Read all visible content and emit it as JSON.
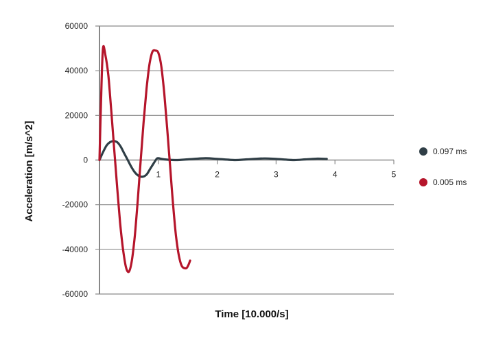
{
  "chart_data": {
    "type": "line",
    "title": "",
    "xlabel": "Time [10.000/s]",
    "ylabel": "Acceleration [m/s^2]",
    "xlim": [
      0,
      5
    ],
    "ylim": [
      -60000,
      60000
    ],
    "x_ticks": [
      "1",
      "2",
      "3",
      "4",
      "5"
    ],
    "y_ticks": [
      "60000",
      "40000",
      "20000",
      "0",
      "-20000",
      "-40000",
      "-60000"
    ],
    "grid": "horizontal",
    "legend_position": "right",
    "series": [
      {
        "name": "0.097 ms",
        "color": "#2f3e46",
        "x": [
          0,
          0.06,
          0.12,
          0.18,
          0.24,
          0.3,
          0.36,
          0.42,
          0.48,
          0.54,
          0.6,
          0.66,
          0.73,
          0.8,
          0.86,
          0.92,
          0.97,
          1.0,
          1.1,
          1.3,
          1.5,
          1.8,
          2.0,
          2.3,
          2.5,
          2.8,
          3.0,
          3.3,
          3.5,
          3.7,
          3.86
        ],
        "y": [
          0,
          3500,
          6500,
          8000,
          8500,
          8000,
          6000,
          3000,
          0,
          -3000,
          -5500,
          -7000,
          -7500,
          -6500,
          -4000,
          -1500,
          500,
          800,
          300,
          0,
          300,
          800,
          500,
          0,
          300,
          700,
          500,
          0,
          300,
          600,
          500
        ]
      },
      {
        "name": "0.005 ms",
        "color": "#b5152b",
        "x": [
          0,
          0.03,
          0.06,
          0.1,
          0.15,
          0.2,
          0.25,
          0.3,
          0.35,
          0.4,
          0.45,
          0.5,
          0.55,
          0.6,
          0.65,
          0.7,
          0.75,
          0.8,
          0.85,
          0.9,
          0.95,
          1.0,
          1.05,
          1.1,
          1.15,
          1.2,
          1.25,
          1.3,
          1.35,
          1.4,
          1.47,
          1.51,
          1.54
        ],
        "y": [
          0,
          30000,
          50000,
          47000,
          38000,
          22000,
          5000,
          -12000,
          -28000,
          -40000,
          -48000,
          -50000,
          -45000,
          -34000,
          -18000,
          0,
          17000,
          32000,
          43000,
          48500,
          49000,
          48000,
          42000,
          30000,
          14000,
          -3000,
          -20000,
          -34000,
          -43000,
          -47500,
          -48500,
          -47000,
          -45000
        ]
      }
    ]
  },
  "axes": {
    "x_title": "Time [10.000/s]",
    "y_title": "Acceleration [m/s^2]"
  },
  "legend": {
    "items": [
      {
        "label": "0.097 ms",
        "color": "#2f3e46"
      },
      {
        "label": "0.005 ms",
        "color": "#b5152b"
      }
    ]
  }
}
